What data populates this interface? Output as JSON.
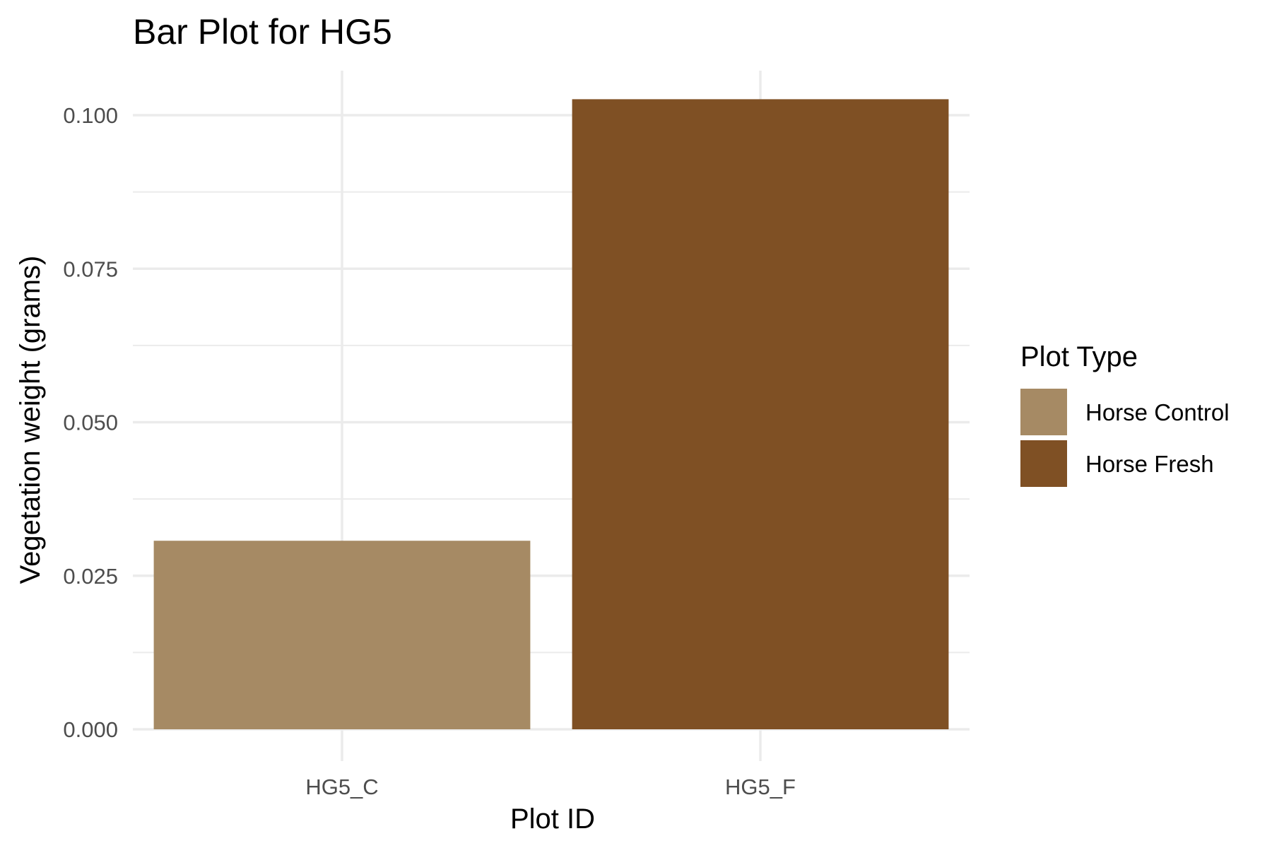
{
  "chart_data": {
    "type": "bar",
    "title": "Bar Plot for HG5",
    "xlabel": "Plot ID",
    "ylabel": "Vegetation weight (grams)",
    "categories": [
      "HG5_C",
      "HG5_F"
    ],
    "values": [
      0.0307,
      0.1026
    ],
    "fill_groups": [
      "Horse Control",
      "Horse Fresh"
    ],
    "colors": [
      "#a68a64",
      "#7f5024"
    ],
    "ylim": [
      0,
      0.1075
    ],
    "y_ticks": [
      0,
      0.025,
      0.05,
      0.075,
      0.1
    ],
    "y_tick_labels": [
      "0.000",
      "0.025",
      "0.050",
      "0.075",
      "0.100"
    ],
    "y_minor_ticks": [
      0.0125,
      0.0375,
      0.0625,
      0.0875
    ],
    "grid": true,
    "legend": {
      "title": "Plot Type",
      "position": "right",
      "entries": [
        {
          "label": "Horse Control",
          "color": "#a68a64"
        },
        {
          "label": "Horse Fresh",
          "color": "#7f5024"
        }
      ]
    }
  }
}
